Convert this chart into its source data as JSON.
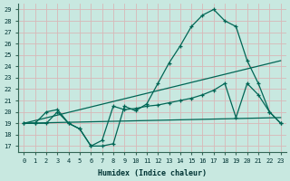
{
  "xlabel": "Humidex (Indice chaleur)",
  "background_color": "#c8e8e0",
  "grid_color": "#b0d8d0",
  "line_color": "#006655",
  "xlim_min": -0.5,
  "xlim_max": 23.5,
  "ylim_min": 16.5,
  "ylim_max": 29.5,
  "yticks": [
    17,
    18,
    19,
    20,
    21,
    22,
    23,
    24,
    25,
    26,
    27,
    28,
    29
  ],
  "xticks": [
    0,
    1,
    2,
    3,
    4,
    5,
    6,
    7,
    8,
    9,
    10,
    11,
    12,
    13,
    14,
    15,
    16,
    17,
    18,
    19,
    20,
    21,
    22,
    23
  ],
  "line1_x": [
    0,
    1,
    2,
    3,
    4,
    5,
    6,
    7,
    8,
    9,
    10,
    11,
    12,
    13,
    14,
    15,
    16,
    17,
    18,
    19,
    20,
    21,
    22,
    23
  ],
  "line1_y": [
    19,
    19,
    20,
    20.2,
    19.0,
    18.5,
    17.0,
    17.0,
    17.2,
    20.5,
    20.1,
    20.7,
    22.5,
    24.3,
    25.8,
    27.5,
    28.5,
    29.0,
    28.0,
    27.5,
    24.5,
    22.5,
    20.0,
    19.0
  ],
  "line2_x": [
    0,
    1,
    2,
    3,
    4,
    5,
    6,
    7,
    8,
    9,
    10,
    11,
    12,
    13,
    14,
    15,
    16,
    17,
    18,
    19,
    20,
    21,
    22,
    23
  ],
  "line2_y": [
    19,
    19,
    19,
    20,
    19,
    18.5,
    17,
    17.5,
    20.5,
    20.2,
    20.3,
    20.5,
    20.6,
    20.8,
    21.0,
    21.2,
    21.5,
    21.9,
    22.5,
    19.5,
    22.5,
    21.5,
    20.0,
    19.0
  ],
  "line3_x": [
    0,
    23
  ],
  "line3_y": [
    19.0,
    19.5
  ],
  "line4_x": [
    0,
    23
  ],
  "line4_y": [
    19.0,
    24.5
  ]
}
